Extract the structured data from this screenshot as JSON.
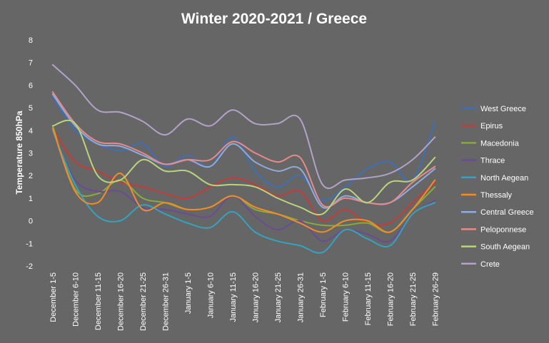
{
  "chart_data": {
    "type": "line",
    "title": "Winter 2020-2021 / Greece",
    "xlabel": "",
    "ylabel": "Temperature 850hPa",
    "ylim": [
      -2,
      8
    ],
    "yticks": [
      -2,
      -1,
      0,
      1,
      2,
      3,
      4,
      5,
      6,
      7,
      8
    ],
    "grid": false,
    "legend_position": "right",
    "categories": [
      "December 1-5",
      "December 6-10",
      "December 11-15",
      "December 16-20",
      "December 21-25",
      "December 26-31",
      "January 1-5",
      "January 6-10",
      "January 11-15",
      "January 16-20",
      "January 21-25",
      "January 26-31",
      "February 1-5",
      "February 6-10",
      "February 11-15",
      "February 16-20",
      "February 21-25",
      "February 26-29"
    ],
    "series": [
      {
        "name": "West Greece",
        "color": "#3f6fb5",
        "values": [
          5.5,
          4.0,
          3.4,
          3.1,
          3.4,
          2.4,
          2.9,
          2.4,
          3.7,
          2.2,
          1.5,
          2.0,
          0.9,
          1.5,
          2.3,
          2.6,
          1.8,
          4.4
        ]
      },
      {
        "name": "Epirus",
        "color": "#c43c39",
        "values": [
          4.1,
          2.6,
          2.2,
          1.7,
          1.5,
          1.2,
          1.0,
          1.5,
          1.9,
          1.6,
          1.1,
          1.3,
          0.0,
          0.5,
          -0.1,
          -0.1,
          0.8,
          1.7
        ]
      },
      {
        "name": "Macedonia",
        "color": "#8aaa3c",
        "values": [
          4.2,
          1.4,
          1.2,
          1.8,
          1.0,
          0.8,
          0.5,
          0.6,
          1.1,
          0.5,
          0.3,
          0.0,
          -0.2,
          -0.2,
          -0.1,
          -0.5,
          0.5,
          1.5
        ]
      },
      {
        "name": "Thrace",
        "color": "#6a4c93",
        "values": [
          4.0,
          1.8,
          1.3,
          1.3,
          0.6,
          0.5,
          0.3,
          0.2,
          1.1,
          0.2,
          -0.4,
          0.0,
          -0.9,
          -0.4,
          -0.6,
          -0.9,
          0.3,
          0.9
        ]
      },
      {
        "name": "North Aegean",
        "color": "#34a3c0",
        "values": [
          4.0,
          1.6,
          0.2,
          0.0,
          0.7,
          0.3,
          -0.1,
          -0.3,
          0.4,
          -0.5,
          -0.9,
          -1.1,
          -1.4,
          -0.4,
          -0.8,
          -1.1,
          0.3,
          0.8
        ]
      },
      {
        "name": "Thessaly",
        "color": "#f28c28",
        "values": [
          4.1,
          1.3,
          0.8,
          2.1,
          0.5,
          0.8,
          0.5,
          0.6,
          1.1,
          0.6,
          0.3,
          -0.1,
          -0.5,
          0.0,
          0.0,
          -0.5,
          0.5,
          1.8
        ]
      },
      {
        "name": "Central Greece",
        "color": "#8faadc",
        "values": [
          5.6,
          4.2,
          3.4,
          3.3,
          2.9,
          2.5,
          2.7,
          2.4,
          3.4,
          2.6,
          2.2,
          2.3,
          0.6,
          1.1,
          0.8,
          0.8,
          1.5,
          2.3
        ]
      },
      {
        "name": "Peloponnese",
        "color": "#e68a8a",
        "values": [
          5.7,
          4.3,
          3.5,
          3.4,
          3.0,
          2.5,
          2.7,
          2.7,
          3.5,
          3.0,
          2.6,
          2.8,
          0.7,
          1.0,
          0.8,
          0.8,
          1.7,
          2.4
        ]
      },
      {
        "name": "South Aegean",
        "color": "#b9d47a",
        "values": [
          4.2,
          4.3,
          2.0,
          1.8,
          2.7,
          2.2,
          2.2,
          1.6,
          1.6,
          1.5,
          1.0,
          0.6,
          0.3,
          1.4,
          0.8,
          1.7,
          1.8,
          2.8
        ]
      },
      {
        "name": "Crete",
        "color": "#b3a2c7",
        "values": [
          6.9,
          6.0,
          4.9,
          4.8,
          4.4,
          3.8,
          4.5,
          4.2,
          4.9,
          4.3,
          4.3,
          4.5,
          1.6,
          1.8,
          1.9,
          2.1,
          2.7,
          3.7
        ]
      }
    ]
  }
}
